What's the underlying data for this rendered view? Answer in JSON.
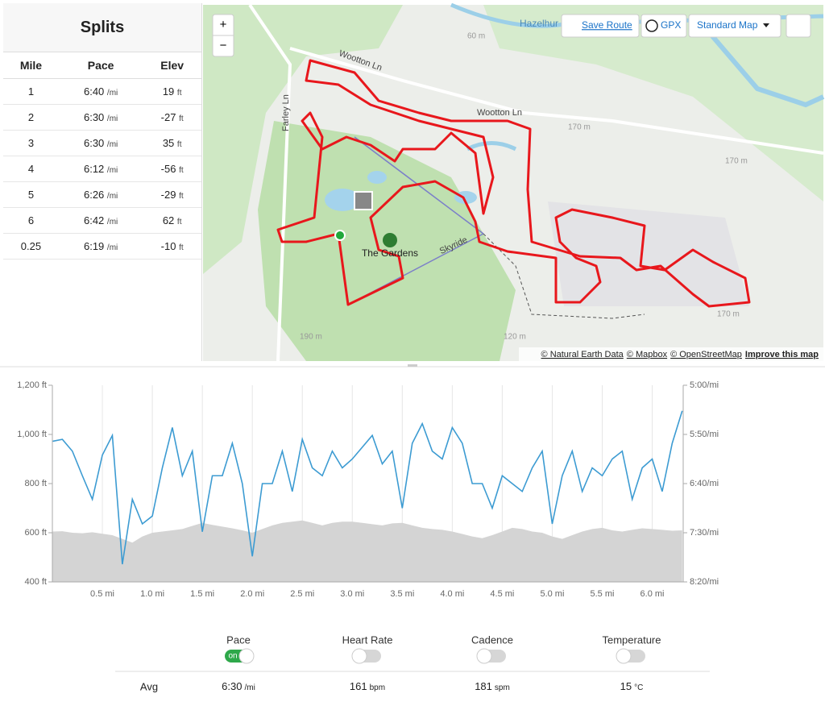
{
  "splits": {
    "title": "Splits",
    "columns": [
      "Mile",
      "Pace",
      "Elev"
    ],
    "rows": [
      {
        "mile": "1",
        "pace": "6:40",
        "pace_unit": "/mi",
        "elev": "19",
        "elev_unit": "ft"
      },
      {
        "mile": "2",
        "pace": "6:30",
        "pace_unit": "/mi",
        "elev": "-27",
        "elev_unit": "ft"
      },
      {
        "mile": "3",
        "pace": "6:30",
        "pace_unit": "/mi",
        "elev": "35",
        "elev_unit": "ft"
      },
      {
        "mile": "4",
        "pace": "6:12",
        "pace_unit": "/mi",
        "elev": "-56",
        "elev_unit": "ft"
      },
      {
        "mile": "5",
        "pace": "6:26",
        "pace_unit": "/mi",
        "elev": "-29",
        "elev_unit": "ft"
      },
      {
        "mile": "6",
        "pace": "6:42",
        "pace_unit": "/mi",
        "elev": "62",
        "elev_unit": "ft"
      },
      {
        "mile": "0.25",
        "pace": "6:19",
        "pace_unit": "/mi",
        "elev": "-10",
        "elev_unit": "ft"
      }
    ]
  },
  "map": {
    "controls": {
      "zoom_in": "+",
      "zoom_out": "−",
      "save_route": "Save Route",
      "gpx": "GPX",
      "map_style": "Standard Map"
    },
    "labels": {
      "road1": "Wootton Ln",
      "road2": "Wootton Ln",
      "road3": "Farley Ln",
      "park": "The Gardens",
      "lift": "Skyride",
      "place": "Hazelhur",
      "h1": "170 m",
      "h2": "170 m",
      "h3": "190 m",
      "h4": "120 m",
      "h5": "170 m",
      "h6": "60 m"
    },
    "attribution": [
      "© Natural Earth Data",
      "© Mapbox",
      "© OpenStreetMap",
      "Improve this map"
    ]
  },
  "chart_data": {
    "type": "line",
    "x": [
      0,
      0.1,
      0.2,
      0.3,
      0.4,
      0.5,
      0.6,
      0.7,
      0.8,
      0.9,
      1,
      1.1,
      1.2,
      1.3,
      1.4,
      1.5,
      1.6,
      1.7,
      1.8,
      1.9,
      2,
      2.1,
      2.2,
      2.3,
      2.4,
      2.5,
      2.6,
      2.7,
      2.8,
      2.9,
      3,
      3.1,
      3.2,
      3.3,
      3.4,
      3.5,
      3.6,
      3.7,
      3.8,
      3.9,
      4,
      4.1,
      4.2,
      4.3,
      4.4,
      4.5,
      4.6,
      4.7,
      4.8,
      4.9,
      5,
      5.1,
      5.2,
      5.3,
      5.4,
      5.5,
      5.6,
      5.7,
      5.8,
      5.9,
      6,
      6.1,
      6.2,
      6.3
    ],
    "xlim": [
      0,
      6.31
    ],
    "xticks": [
      {
        "value": 0.5,
        "label": "0.5 mi"
      },
      {
        "value": 1,
        "label": "1.0 mi"
      },
      {
        "value": 1.5,
        "label": "1.5 mi"
      },
      {
        "value": 2,
        "label": "2.0 mi"
      },
      {
        "value": 2.5,
        "label": "2.5 mi"
      },
      {
        "value": 3,
        "label": "3.0 mi"
      },
      {
        "value": 3.5,
        "label": "3.5 mi"
      },
      {
        "value": 4,
        "label": "4.0 mi"
      },
      {
        "value": 4.5,
        "label": "4.5 mi"
      },
      {
        "value": 5,
        "label": "5.0 mi"
      },
      {
        "value": 5.5,
        "label": "5.5 mi"
      },
      {
        "value": 6,
        "label": "6.0 mi"
      }
    ],
    "ylim": [
      400,
      1200
    ],
    "yticks": [
      {
        "value": 400,
        "label": "400 ft"
      },
      {
        "value": 600,
        "label": "600 ft"
      },
      {
        "value": 800,
        "label": "800 ft"
      },
      {
        "value": 1000,
        "label": "1,000 ft"
      },
      {
        "value": 1200,
        "label": "1,200 ft"
      }
    ],
    "y2lim": [
      500,
      300
    ],
    "y2ticks": [
      {
        "value": 500,
        "label": "8:20/mi"
      },
      {
        "value": 450,
        "label": "7:30/mi"
      },
      {
        "value": 400,
        "label": "6:40/mi"
      },
      {
        "value": 350,
        "label": "5:50/mi"
      },
      {
        "value": 300,
        "label": "5:00/mi"
      }
    ],
    "series": [
      {
        "color": "#d4d4d4",
        "area": true,
        "values": [
          605,
          606,
          600,
          598,
          602,
          596,
          590,
          575,
          560,
          585,
          600,
          605,
          610,
          615,
          628,
          640,
          632,
          625,
          618,
          610,
          600,
          615,
          630,
          640,
          645,
          650,
          640,
          630,
          640,
          645,
          645,
          640,
          635,
          630,
          638,
          640,
          630,
          620,
          615,
          612,
          605,
          595,
          585,
          578,
          590,
          605,
          620,
          615,
          605,
          600,
          585,
          575,
          590,
          605,
          615,
          620,
          610,
          605,
          612,
          618,
          615,
          612,
          608,
          610
        ]
      },
      {
        "color": "#3c9bd2",
        "axis": "y2",
        "area": false,
        "values": [
          357,
          355,
          367,
          392,
          416,
          371,
          351,
          482,
          416,
          441,
          433,
          384,
          343,
          392,
          367,
          449,
          392,
          392,
          359,
          400,
          474,
          400,
          400,
          367,
          408,
          355,
          384,
          392,
          367,
          384,
          375,
          363,
          351,
          380,
          367,
          425,
          359,
          339,
          367,
          375,
          343,
          359,
          400,
          400,
          425,
          392,
          400,
          408,
          384,
          367,
          441,
          392,
          367,
          408,
          384,
          392,
          375,
          367,
          416,
          384,
          375,
          408,
          359,
          326
        ]
      }
    ]
  },
  "metrics": {
    "items": [
      {
        "label": "Pace",
        "on": true,
        "on_label": "on"
      },
      {
        "label": "Heart Rate",
        "on": false
      },
      {
        "label": "Cadence",
        "on": false
      },
      {
        "label": "Temperature",
        "on": false
      }
    ],
    "avg": {
      "label": "Avg",
      "values": [
        {
          "value": "6:30",
          "unit": "/mi"
        },
        {
          "value": "161",
          "unit": "bpm"
        },
        {
          "value": "181",
          "unit": "spm"
        },
        {
          "value": "15",
          "unit": "°C"
        }
      ]
    }
  }
}
